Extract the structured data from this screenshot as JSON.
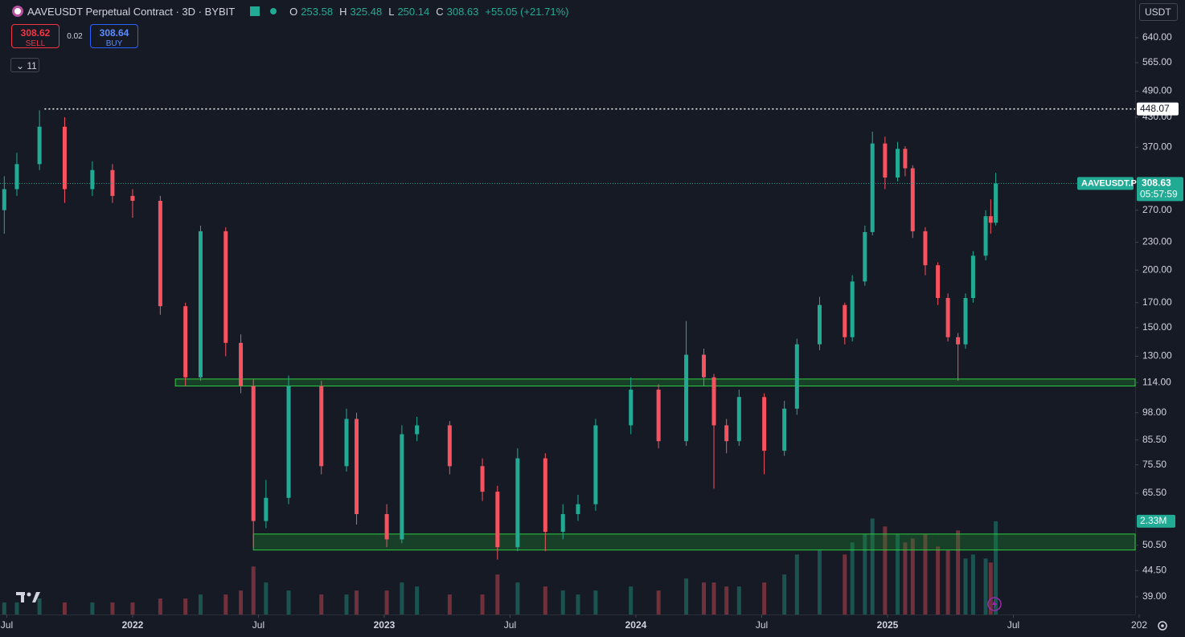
{
  "chart_data": {
    "type": "candlestick",
    "title": "AAVEUSDT Perpetual Contract · 3D · BYBIT",
    "ohlc": {
      "open_label": "O",
      "open": 253.58,
      "high_label": "H",
      "high": 325.48,
      "low_label": "L",
      "low": 250.14,
      "close_label": "C",
      "close": 308.63,
      "change": "+55.05 (+21.71%)"
    },
    "trade": {
      "sell_price": 308.62,
      "sell_label": "SELL",
      "spread": 0.02,
      "buy_price": 308.64,
      "buy_label": "BUY"
    },
    "indicator_count": 11,
    "currency": "USDT",
    "symbol_label": "AAVEUSDT.P",
    "countdown": "05:57:59",
    "log_scale": true,
    "up_color": "#22ab94",
    "down_color": "#f7525f",
    "xlim": [
      2021.473,
      2025.984
    ],
    "xticks": [
      {
        "value": 2021.5,
        "label": "Jul"
      },
      2022,
      {
        "value": 2022.5,
        "label": "Jul"
      },
      2023,
      {
        "value": 2023.5,
        "label": "Jul"
      },
      2024,
      {
        "value": 2024.5,
        "label": "Jul"
      },
      2025,
      {
        "value": 2025.5,
        "label": "Jul"
      },
      {
        "value": 2026,
        "label": "202"
      }
    ],
    "ylim": [
      35.7,
      773
    ],
    "yticks": [
      {
        "value": 640,
        "label": "640.00"
      },
      {
        "value": 565,
        "label": "565.00"
      },
      {
        "value": 490,
        "label": "490.00"
      },
      {
        "value": 430,
        "label": "430.00"
      },
      {
        "value": 370,
        "label": "370.00"
      },
      {
        "value": 270,
        "label": "270.00"
      },
      {
        "value": 230,
        "label": "230.00"
      },
      {
        "value": 200,
        "label": "200.00"
      },
      {
        "value": 170,
        "label": "170.00"
      },
      {
        "value": 150,
        "label": "150.00"
      },
      {
        "value": 130,
        "label": "130.00"
      },
      {
        "value": 114,
        "label": "114.00"
      },
      {
        "value": 98,
        "label": "98.00"
      },
      {
        "value": 85.5,
        "label": "85.50"
      },
      {
        "value": 75.5,
        "label": "75.50"
      },
      {
        "value": 65.5,
        "label": "65.50"
      },
      {
        "value": 50.5,
        "label": "50.50"
      },
      {
        "value": 44.5,
        "label": "44.50"
      },
      {
        "value": 39,
        "label": "39.00"
      }
    ],
    "high_line": {
      "value": 448.07,
      "from": 2021.65
    },
    "zones": [
      {
        "from": 2022.17,
        "low": 112,
        "high": 116
      },
      {
        "from": 2022.48,
        "low": 49.3,
        "high": 53.4
      }
    ],
    "zone_color": "#1e8a2e",
    "x": [
      2021.49,
      2021.54,
      2021.63,
      2021.73,
      2021.84,
      2021.92,
      2022.0,
      2022.11,
      2022.21,
      2022.27,
      2022.37,
      2022.43,
      2022.48,
      2022.53,
      2022.62,
      2022.75,
      2022.85,
      2022.89,
      2023.01,
      2023.07,
      2023.13,
      2023.26,
      2023.39,
      2023.45,
      2023.53,
      2023.64,
      2023.71,
      2023.77,
      2023.84,
      2023.98,
      2024.09,
      2024.2,
      2024.27,
      2024.31,
      2024.36,
      2024.41,
      2024.51,
      2024.59,
      2024.64,
      2024.73,
      2024.83,
      2024.86,
      2024.91,
      2024.94,
      2024.99,
      2025.04,
      2025.07,
      2025.1,
      2025.15,
      2025.2,
      2025.24,
      2025.28,
      2025.31,
      2025.34,
      2025.39,
      2025.41,
      2025.43
    ],
    "open": [
      270,
      300,
      340,
      410,
      300,
      330,
      290,
      283,
      167,
      117,
      243,
      139,
      112,
      57,
      64,
      112,
      75,
      95,
      59,
      52,
      88,
      92,
      75,
      66,
      50,
      78,
      54,
      59,
      62,
      92,
      110,
      85,
      131,
      117,
      92,
      85,
      106,
      81,
      100,
      138,
      168,
      143,
      189,
      242,
      377,
      318,
      367,
      333,
      243,
      205,
      174,
      143,
      138,
      174,
      215,
      262,
      253.58
    ],
    "high": [
      320,
      360,
      445,
      430,
      345,
      340,
      300,
      290,
      170,
      250,
      248,
      145,
      116,
      70,
      118,
      115,
      100,
      98,
      62,
      92,
      96,
      94,
      78,
      68,
      82,
      80,
      62,
      65,
      95,
      117,
      113,
      155,
      135,
      119,
      95,
      110,
      108,
      104,
      142,
      175,
      170,
      195,
      250,
      400,
      390,
      380,
      372,
      338,
      248,
      208,
      178,
      146,
      178,
      220,
      270,
      285,
      325.48
    ],
    "low": [
      240,
      290,
      330,
      280,
      290,
      280,
      260,
      160,
      112,
      115,
      130,
      108,
      50,
      55,
      62,
      72,
      73,
      56,
      50,
      51,
      85,
      72,
      63,
      47,
      49,
      49,
      52,
      57,
      60,
      88,
      82,
      83,
      112,
      67,
      80,
      83,
      72,
      79,
      97,
      134,
      138,
      140,
      185,
      238,
      300,
      312,
      320,
      235,
      195,
      168,
      140,
      115,
      135,
      170,
      210,
      240,
      250.14
    ],
    "close": [
      300,
      340,
      410,
      300,
      330,
      290,
      283,
      167,
      117,
      243,
      139,
      112,
      57,
      64,
      112,
      75,
      95,
      59,
      52,
      88,
      92,
      75,
      66,
      50,
      78,
      54,
      59,
      62,
      92,
      110,
      85,
      131,
      117,
      92,
      85,
      106,
      81,
      100,
      138,
      168,
      143,
      189,
      242,
      377,
      318,
      367,
      333,
      243,
      205,
      174,
      143,
      138,
      174,
      215,
      262,
      253.58,
      308.63
    ],
    "volume": {
      "values": [
        0.3,
        0.3,
        0.4,
        0.3,
        0.3,
        0.3,
        0.3,
        0.4,
        0.4,
        0.5,
        0.5,
        0.6,
        1.2,
        0.8,
        0.6,
        0.5,
        0.5,
        0.6,
        0.6,
        0.8,
        0.7,
        0.5,
        0.5,
        1.0,
        0.8,
        0.7,
        0.6,
        0.5,
        0.6,
        0.7,
        0.6,
        0.9,
        0.8,
        0.8,
        0.7,
        0.7,
        0.8,
        1.0,
        1.5,
        1.6,
        1.5,
        1.8,
        2.0,
        2.4,
        2.2,
        2.0,
        1.8,
        1.9,
        2.0,
        1.7,
        1.6,
        2.1,
        1.4,
        1.5,
        1.4,
        1.3,
        2.33
      ],
      "ylim": [
        0,
        5.42
      ],
      "last_label": "2.33M"
    }
  }
}
